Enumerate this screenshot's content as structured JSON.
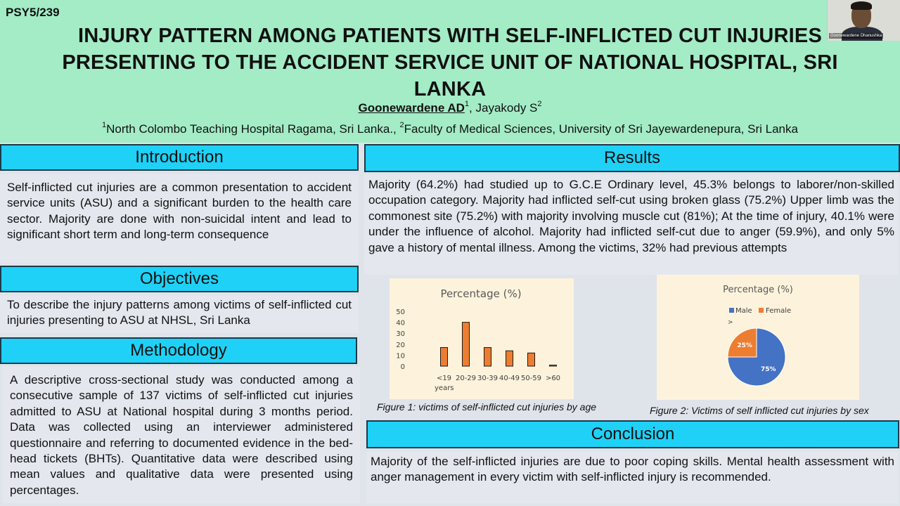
{
  "header": {
    "code": "PSY5/239",
    "title": "INJURY PATTERN AMONG PATIENTS WITH SELF-INFLICTED CUT INJURIES PRESENTING TO THE ACCIDENT SERVICE UNIT OF NATIONAL HOSPITAL, SRI LANKA",
    "author1": "Goonewardene AD",
    "author1_sup": "1",
    "author_sep": ", ",
    "author2": "Jayakody S",
    "author2_sup": "2",
    "affil1_sup": "1",
    "affil1": "North Colombo Teaching Hospital Ragama, Sri Lanka., ",
    "affil2_sup": "2",
    "affil2": "Faculty of Medical Sciences, University of Sri Jayewardenepura, Sri Lanka"
  },
  "webcam": {
    "name": "Goonewardene Dhanushka"
  },
  "sections": {
    "introduction": {
      "heading": "Introduction",
      "text": "Self-inflicted cut injuries are a common presentation to accident service units (ASU) and a significant burden to the health care sector. Majority are done with non-suicidal intent and lead to significant short term and long-term consequence"
    },
    "objectives": {
      "heading": "Objectives",
      "text": "To  describe the injury patterns among victims of self-inflicted cut injuries presenting to ASU at NHSL, Sri Lanka"
    },
    "methodology": {
      "heading": "Methodology",
      "text": "A descriptive cross-sectional study was conducted among a consecutive sample of 137 victims of self-inflicted cut injuries admitted to ASU at National hospital during 3 months period. Data was collected using an interviewer administered questionnaire and referring to documented evidence in the bed-head tickets (BHTs). Quantitative data were described using mean values and qualitative data were presented using percentages."
    },
    "results": {
      "heading": "Results",
      "text": "Majority (64.2%) had studied up to G.C.E Ordinary level, 45.3% belongs to laborer/non-skilled occupation category. Majority had inflicted self-cut using broken glass (75.2%) Upper limb was the commonest site (75.2%) with majority involving muscle cut (81%); At the time of injury, 40.1% were under the influence of alcohol. Majority had inflicted self-cut due to anger (59.9%), and only 5% gave a history of mental illness. Among the victims, 32% had previous attempts"
    },
    "conclusion": {
      "heading": "Conclusion",
      "text": "Majority of the self-inflicted injuries are due to poor coping skills. Mental health assessment with anger management in every victim with self-inflicted injury is recommended."
    }
  },
  "figures": {
    "fig1_caption": "Figure 1: victims of self-inflicted cut injuries  by age",
    "fig2_caption": "Figure 2: Victims of self inflicted cut injuries by sex",
    "fig1_unit": "years",
    "fig2_marker": ">"
  },
  "colors": {
    "header_bg": "#a3ecc6",
    "section_heading_bg": "#1fd1f6",
    "chart_bg": "#fdf3dc",
    "bar_fill": "#ed7d31",
    "male": "#4472c4",
    "female": "#ed7d31"
  },
  "chart_data": [
    {
      "type": "bar",
      "title": "Percentage (%)",
      "categories": [
        "<19",
        "20-29",
        "30-39",
        "40-49",
        "50-59",
        ">60"
      ],
      "values": [
        17,
        40,
        17,
        14,
        12,
        1
      ],
      "yticks": [
        0,
        10,
        20,
        30,
        40,
        50
      ],
      "ylim": [
        0,
        50
      ],
      "grid": false
    },
    {
      "type": "pie",
      "title": "Percentage (%)",
      "labels": [
        "Male",
        "Female"
      ],
      "values": [
        75,
        25
      ],
      "value_labels": [
        "75%",
        "25%"
      ],
      "legend_position": "top"
    }
  ]
}
